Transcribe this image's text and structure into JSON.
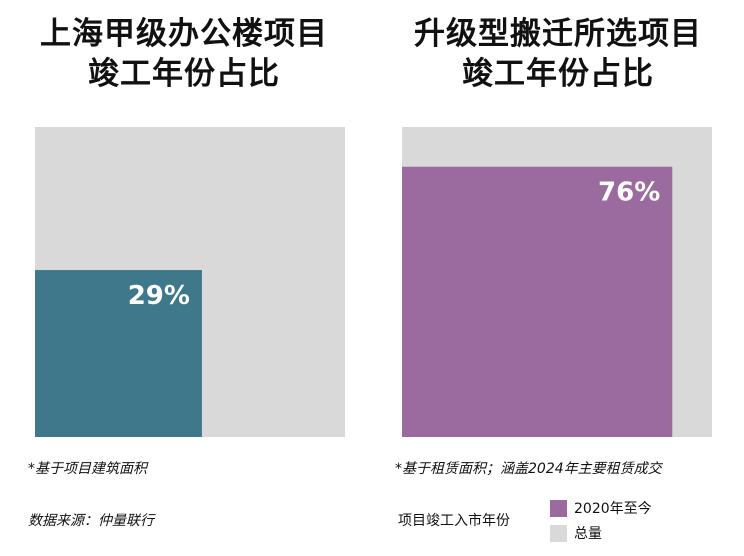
{
  "chart_data": [
    {
      "type": "area",
      "title": [
        "上海甲级办公楼项目",
        "竣工年份占比"
      ],
      "value_percent": 29,
      "value_label": "29%",
      "total_percent": 100,
      "note": "*基于项目建筑面积",
      "source": "数据来源：仲量联行"
    },
    {
      "type": "area",
      "title": [
        "升级型搬迁所选项目",
        "竣工年份占比"
      ],
      "value_percent": 76,
      "value_label": "76%",
      "total_percent": 100,
      "note": "*基于租赁面积；涵盖2024年主要租赁成交"
    }
  ],
  "legend": {
    "title": "项目竣工入市年份",
    "items": [
      {
        "label": "2020年至今",
        "color": "#9b6a9e"
      },
      {
        "label": "总量",
        "color": "#d9d9d9"
      }
    ]
  },
  "colors": {
    "left_value": "#3e788a",
    "right_value": "#9b6a9e",
    "total": "#d9d9d9",
    "value_text": "#ffffff"
  }
}
